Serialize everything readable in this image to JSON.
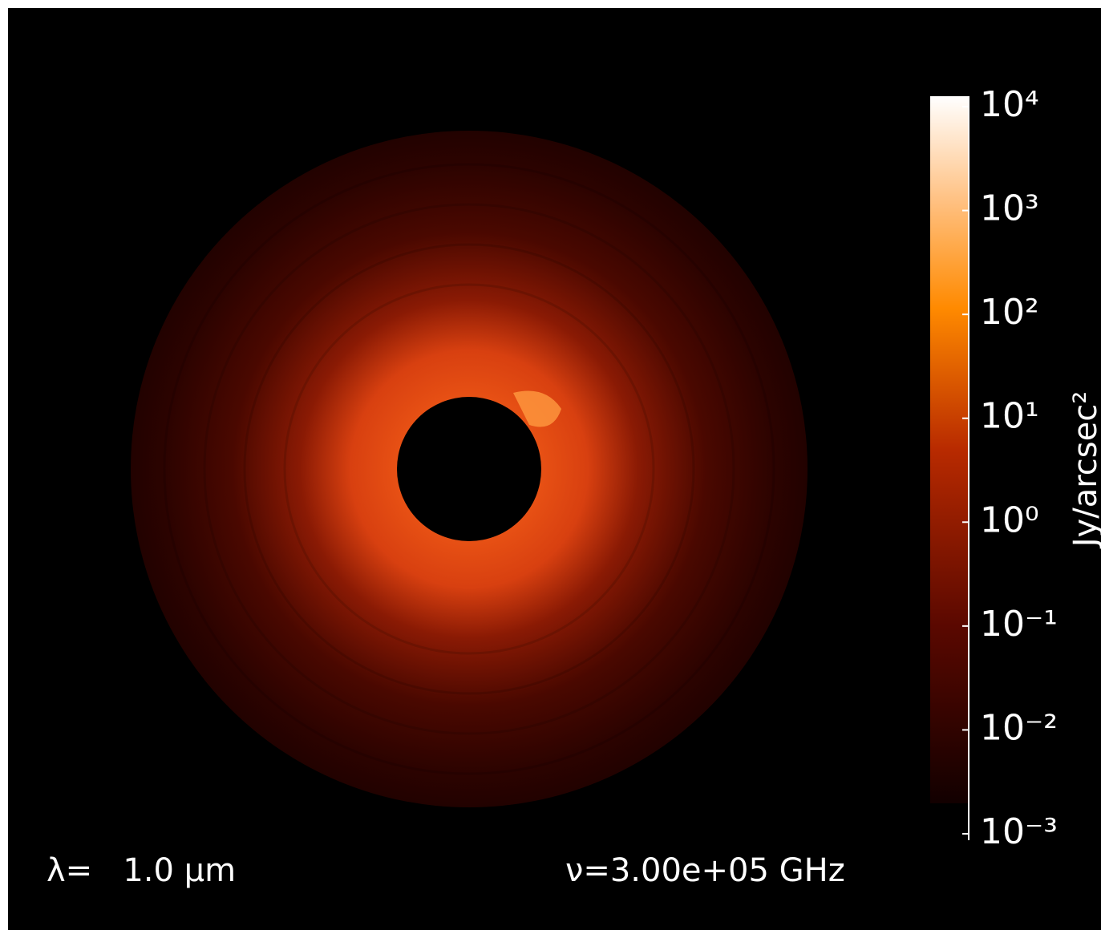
{
  "chart_data": {
    "type": "image",
    "ylabel": "Jy/arcsec²",
    "log_scale": true,
    "ylim": [
      0.001,
      10000
    ],
    "yticks": [
      {
        "value": 10000,
        "label": "10⁴"
      },
      {
        "value": 1000,
        "label": "10³"
      },
      {
        "value": 100,
        "label": "10²"
      },
      {
        "value": 10,
        "label": "10¹"
      },
      {
        "value": 1,
        "label": "10⁰"
      },
      {
        "value": 0.1,
        "label": "10⁻¹"
      },
      {
        "value": 0.01,
        "label": "10⁻²"
      },
      {
        "value": 0.001,
        "label": "10⁻³"
      }
    ],
    "annotations": [
      "λ=   1.0 μm",
      "ν=3.00e+05 GHz"
    ]
  }
}
